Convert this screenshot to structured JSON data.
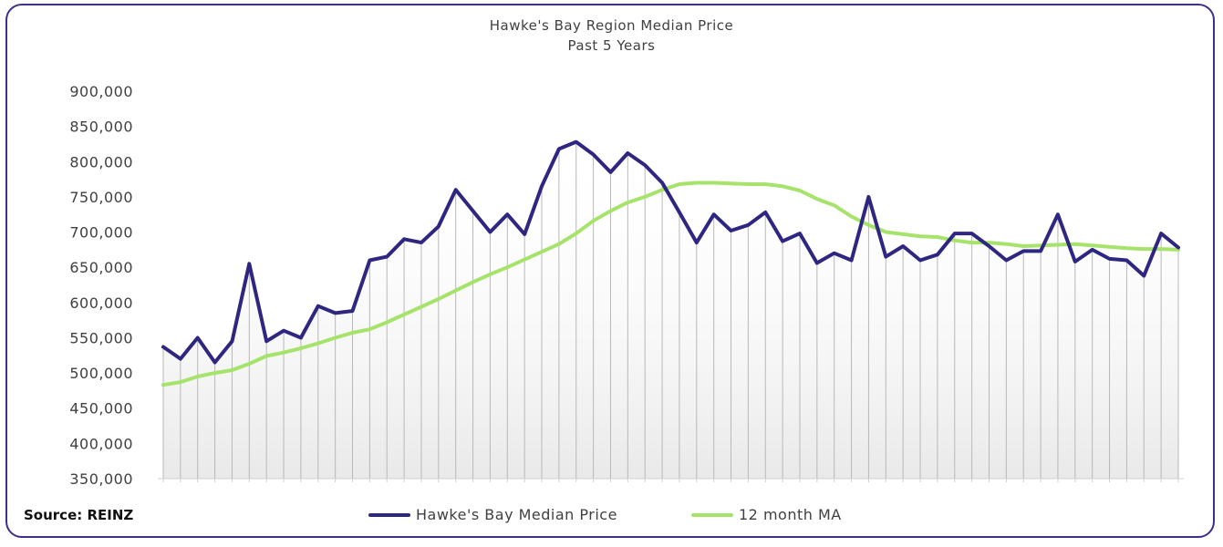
{
  "source_label": "Source: REINZ",
  "colors": {
    "frame": "#3d2f8a",
    "median": "#2e2680",
    "ma": "#a6e36a",
    "fill_bar": "#b8b8b8"
  },
  "chart_data": {
    "type": "line",
    "title": "Hawke's Bay Region Median Price",
    "subtitle": "Past 5 Years",
    "xlabel": "",
    "ylabel": "",
    "ylim": [
      350000,
      900000
    ],
    "yticks": [
      350000,
      400000,
      450000,
      500000,
      550000,
      600000,
      650000,
      700000,
      750000,
      800000,
      850000,
      900000
    ],
    "ytick_labels": [
      "350,000",
      "400,000",
      "450,000",
      "500,000",
      "550,000",
      "600,000",
      "650,000",
      "700,000",
      "750,000",
      "800,000",
      "850,000",
      "900,000"
    ],
    "grid": false,
    "legend": "bottom",
    "series": [
      {
        "name": "Hawke's Bay Median Price",
        "values": [
          537000,
          520000,
          550000,
          515000,
          545000,
          655000,
          545000,
          560000,
          550000,
          595000,
          585000,
          588000,
          660000,
          665000,
          690000,
          685000,
          708000,
          760000,
          730000,
          700000,
          725000,
          697000,
          765000,
          818000,
          828000,
          810000,
          785000,
          812000,
          795000,
          770000,
          728000,
          685000,
          725000,
          702000,
          710000,
          728000,
          687000,
          698000,
          656000,
          670000,
          660000,
          750000,
          665000,
          680000,
          660000,
          668000,
          698000,
          698000,
          680000,
          660000,
          673000,
          673000,
          725000,
          658000,
          675000,
          662000,
          660000,
          638000,
          698000,
          678000
        ]
      },
      {
        "name": "12 month MA",
        "values": [
          483000,
          487000,
          495000,
          500000,
          504000,
          513000,
          524000,
          529000,
          535000,
          542000,
          550000,
          557000,
          562000,
          572000,
          583000,
          594000,
          605000,
          617000,
          629000,
          640000,
          650000,
          661000,
          672000,
          683000,
          698000,
          716000,
          730000,
          742000,
          750000,
          760000,
          768000,
          770000,
          770000,
          769000,
          768000,
          768000,
          765000,
          759000,
          747000,
          738000,
          722000,
          710000,
          700000,
          697000,
          694000,
          693000,
          688000,
          685000,
          685000,
          683000,
          680000,
          681000,
          682000,
          683000,
          681000,
          679000,
          677000,
          676000,
          676000,
          675000
        ]
      }
    ]
  }
}
